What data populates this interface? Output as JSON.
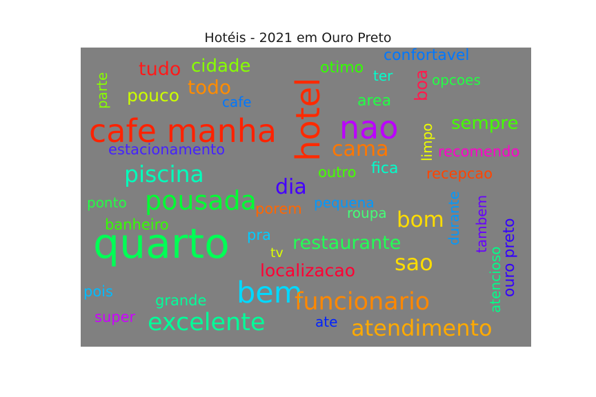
{
  "chart_data": {
    "type": "wordcloud",
    "title": "Hotéis - 2021 em Ouro Preto",
    "background": "#808080",
    "words": [
      {
        "text": "quarto",
        "weight": 1.0,
        "color": "#00ff55"
      },
      {
        "text": "cafe manha",
        "weight": 0.8,
        "color": "#ff2200"
      },
      {
        "text": "hotel",
        "weight": 0.8,
        "color": "#ff2a00"
      },
      {
        "text": "nao",
        "weight": 0.7,
        "color": "#bb00ff"
      },
      {
        "text": "bem",
        "weight": 0.7,
        "color": "#00d9ff"
      },
      {
        "text": "pousada",
        "weight": 0.6,
        "color": "#00ff33"
      },
      {
        "text": "funcionario",
        "weight": 0.6,
        "color": "#ff8800"
      },
      {
        "text": "excelente",
        "weight": 0.6,
        "color": "#00ff99"
      },
      {
        "text": "piscina",
        "weight": 0.55,
        "color": "#00ffbb"
      },
      {
        "text": "atendimento",
        "weight": 0.55,
        "color": "#ffaa00"
      },
      {
        "text": "cama",
        "weight": 0.5,
        "color": "#ff7700"
      },
      {
        "text": "sao",
        "weight": 0.5,
        "color": "#ffdd00"
      },
      {
        "text": "bom",
        "weight": 0.5,
        "color": "#ffdd00"
      },
      {
        "text": "dia",
        "weight": 0.45,
        "color": "#4400ff"
      },
      {
        "text": "restaurante",
        "weight": 0.45,
        "color": "#22ff55"
      },
      {
        "text": "todo",
        "weight": 0.45,
        "color": "#ff8c00"
      },
      {
        "text": "localizacao",
        "weight": 0.42,
        "color": "#ff0033"
      },
      {
        "text": "cidade",
        "weight": 0.42,
        "color": "#88ff00"
      },
      {
        "text": "tudo",
        "weight": 0.42,
        "color": "#ff1a1a"
      },
      {
        "text": "sempre",
        "weight": 0.42,
        "color": "#44ff00"
      },
      {
        "text": "pouco",
        "weight": 0.4,
        "color": "#ccff00"
      },
      {
        "text": "ouro preto",
        "weight": 0.4,
        "color": "#3300ff"
      },
      {
        "text": "confortavel",
        "weight": 0.38,
        "color": "#0077ff"
      },
      {
        "text": "boa",
        "weight": 0.38,
        "color": "#ff1a4d"
      },
      {
        "text": "estacionamento",
        "weight": 0.36,
        "color": "#4422ff"
      },
      {
        "text": "otimo",
        "weight": 0.36,
        "color": "#33ff00"
      },
      {
        "text": "recepcao",
        "weight": 0.36,
        "color": "#ff4400"
      },
      {
        "text": "atencioso",
        "weight": 0.36,
        "color": "#00ff88"
      },
      {
        "text": "tambem",
        "weight": 0.36,
        "color": "#6600ff"
      },
      {
        "text": "recomendo",
        "weight": 0.34,
        "color": "#ff00cc"
      },
      {
        "text": "outro",
        "weight": 0.34,
        "color": "#44ff00"
      },
      {
        "text": "fica",
        "weight": 0.34,
        "color": "#00ffcc"
      },
      {
        "text": "porem",
        "weight": 0.34,
        "color": "#ff6600"
      },
      {
        "text": "area",
        "weight": 0.34,
        "color": "#22ff44"
      },
      {
        "text": "banheiro",
        "weight": 0.33,
        "color": "#33ff00"
      },
      {
        "text": "ponto",
        "weight": 0.32,
        "color": "#22ff44"
      },
      {
        "text": "pequena",
        "weight": 0.32,
        "color": "#0099ff"
      },
      {
        "text": "roupa",
        "weight": 0.32,
        "color": "#44ff77"
      },
      {
        "text": "limpo",
        "weight": 0.32,
        "color": "#eeff00"
      },
      {
        "text": "durante",
        "weight": 0.32,
        "color": "#0099ff"
      },
      {
        "text": "opcoes",
        "weight": 0.32,
        "color": "#22ff44"
      },
      {
        "text": "grande",
        "weight": 0.32,
        "color": "#00ff99"
      },
      {
        "text": "pra",
        "weight": 0.3,
        "color": "#00ccff"
      },
      {
        "text": "pois",
        "weight": 0.3,
        "color": "#00bbff"
      },
      {
        "text": "super",
        "weight": 0.3,
        "color": "#cc00ff"
      },
      {
        "text": "ter",
        "weight": 0.3,
        "color": "#00ffcc"
      },
      {
        "text": "parte",
        "weight": 0.3,
        "color": "#88ff00"
      },
      {
        "text": "cafe",
        "weight": 0.3,
        "color": "#0077ff"
      },
      {
        "text": "ate",
        "weight": 0.28,
        "color": "#0022ff"
      },
      {
        "text": "tv",
        "weight": 0.28,
        "color": "#ddff00"
      }
    ]
  }
}
